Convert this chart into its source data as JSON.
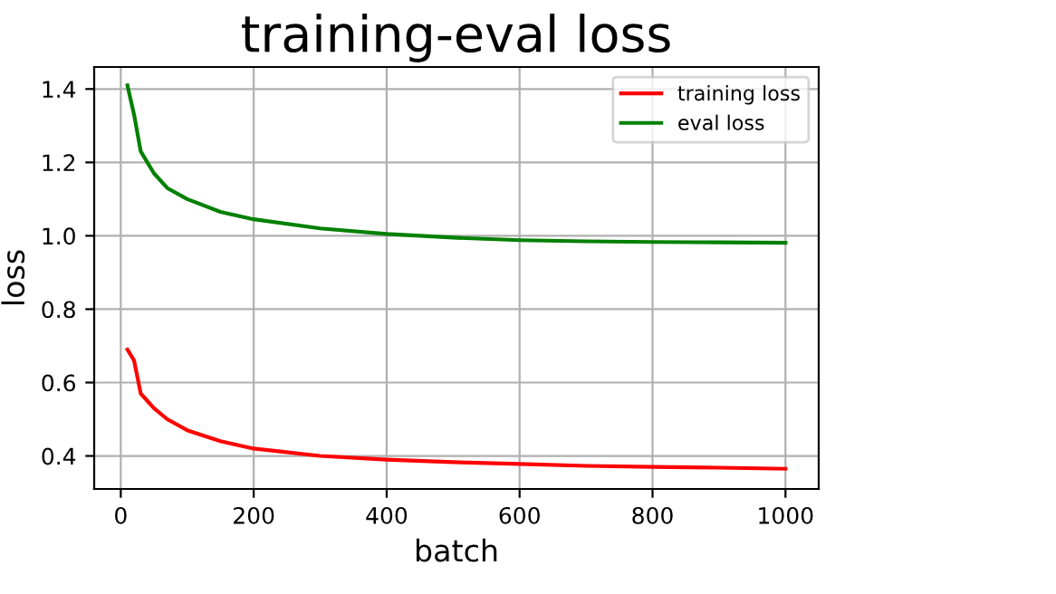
{
  "chart_data": {
    "type": "line",
    "title": "training-eval loss",
    "xlabel": "batch",
    "ylabel": "loss",
    "x": [
      10,
      20,
      30,
      40,
      50,
      70,
      100,
      150,
      200,
      300,
      400,
      500,
      600,
      700,
      800,
      900,
      1000
    ],
    "series": [
      {
        "name": "training loss",
        "color": "#ff0000",
        "values": [
          0.69,
          0.66,
          0.57,
          0.55,
          0.53,
          0.5,
          0.47,
          0.44,
          0.42,
          0.4,
          0.39,
          0.383,
          0.378,
          0.373,
          0.37,
          0.368,
          0.365
        ]
      },
      {
        "name": "eval loss",
        "color": "#008000",
        "values": [
          1.41,
          1.33,
          1.23,
          1.2,
          1.17,
          1.13,
          1.1,
          1.065,
          1.045,
          1.02,
          1.005,
          0.995,
          0.988,
          0.985,
          0.983,
          0.982,
          0.981
        ]
      }
    ],
    "xlim": [
      -40,
      1050
    ],
    "ylim": [
      0.31,
      1.46
    ],
    "xticks": [
      0,
      200,
      400,
      600,
      800,
      1000
    ],
    "yticks": [
      0.4,
      0.6,
      0.8,
      {
        "value": 1.0,
        "label": "1.0"
      },
      1.2,
      1.4
    ],
    "grid": true,
    "legend": "top right"
  }
}
